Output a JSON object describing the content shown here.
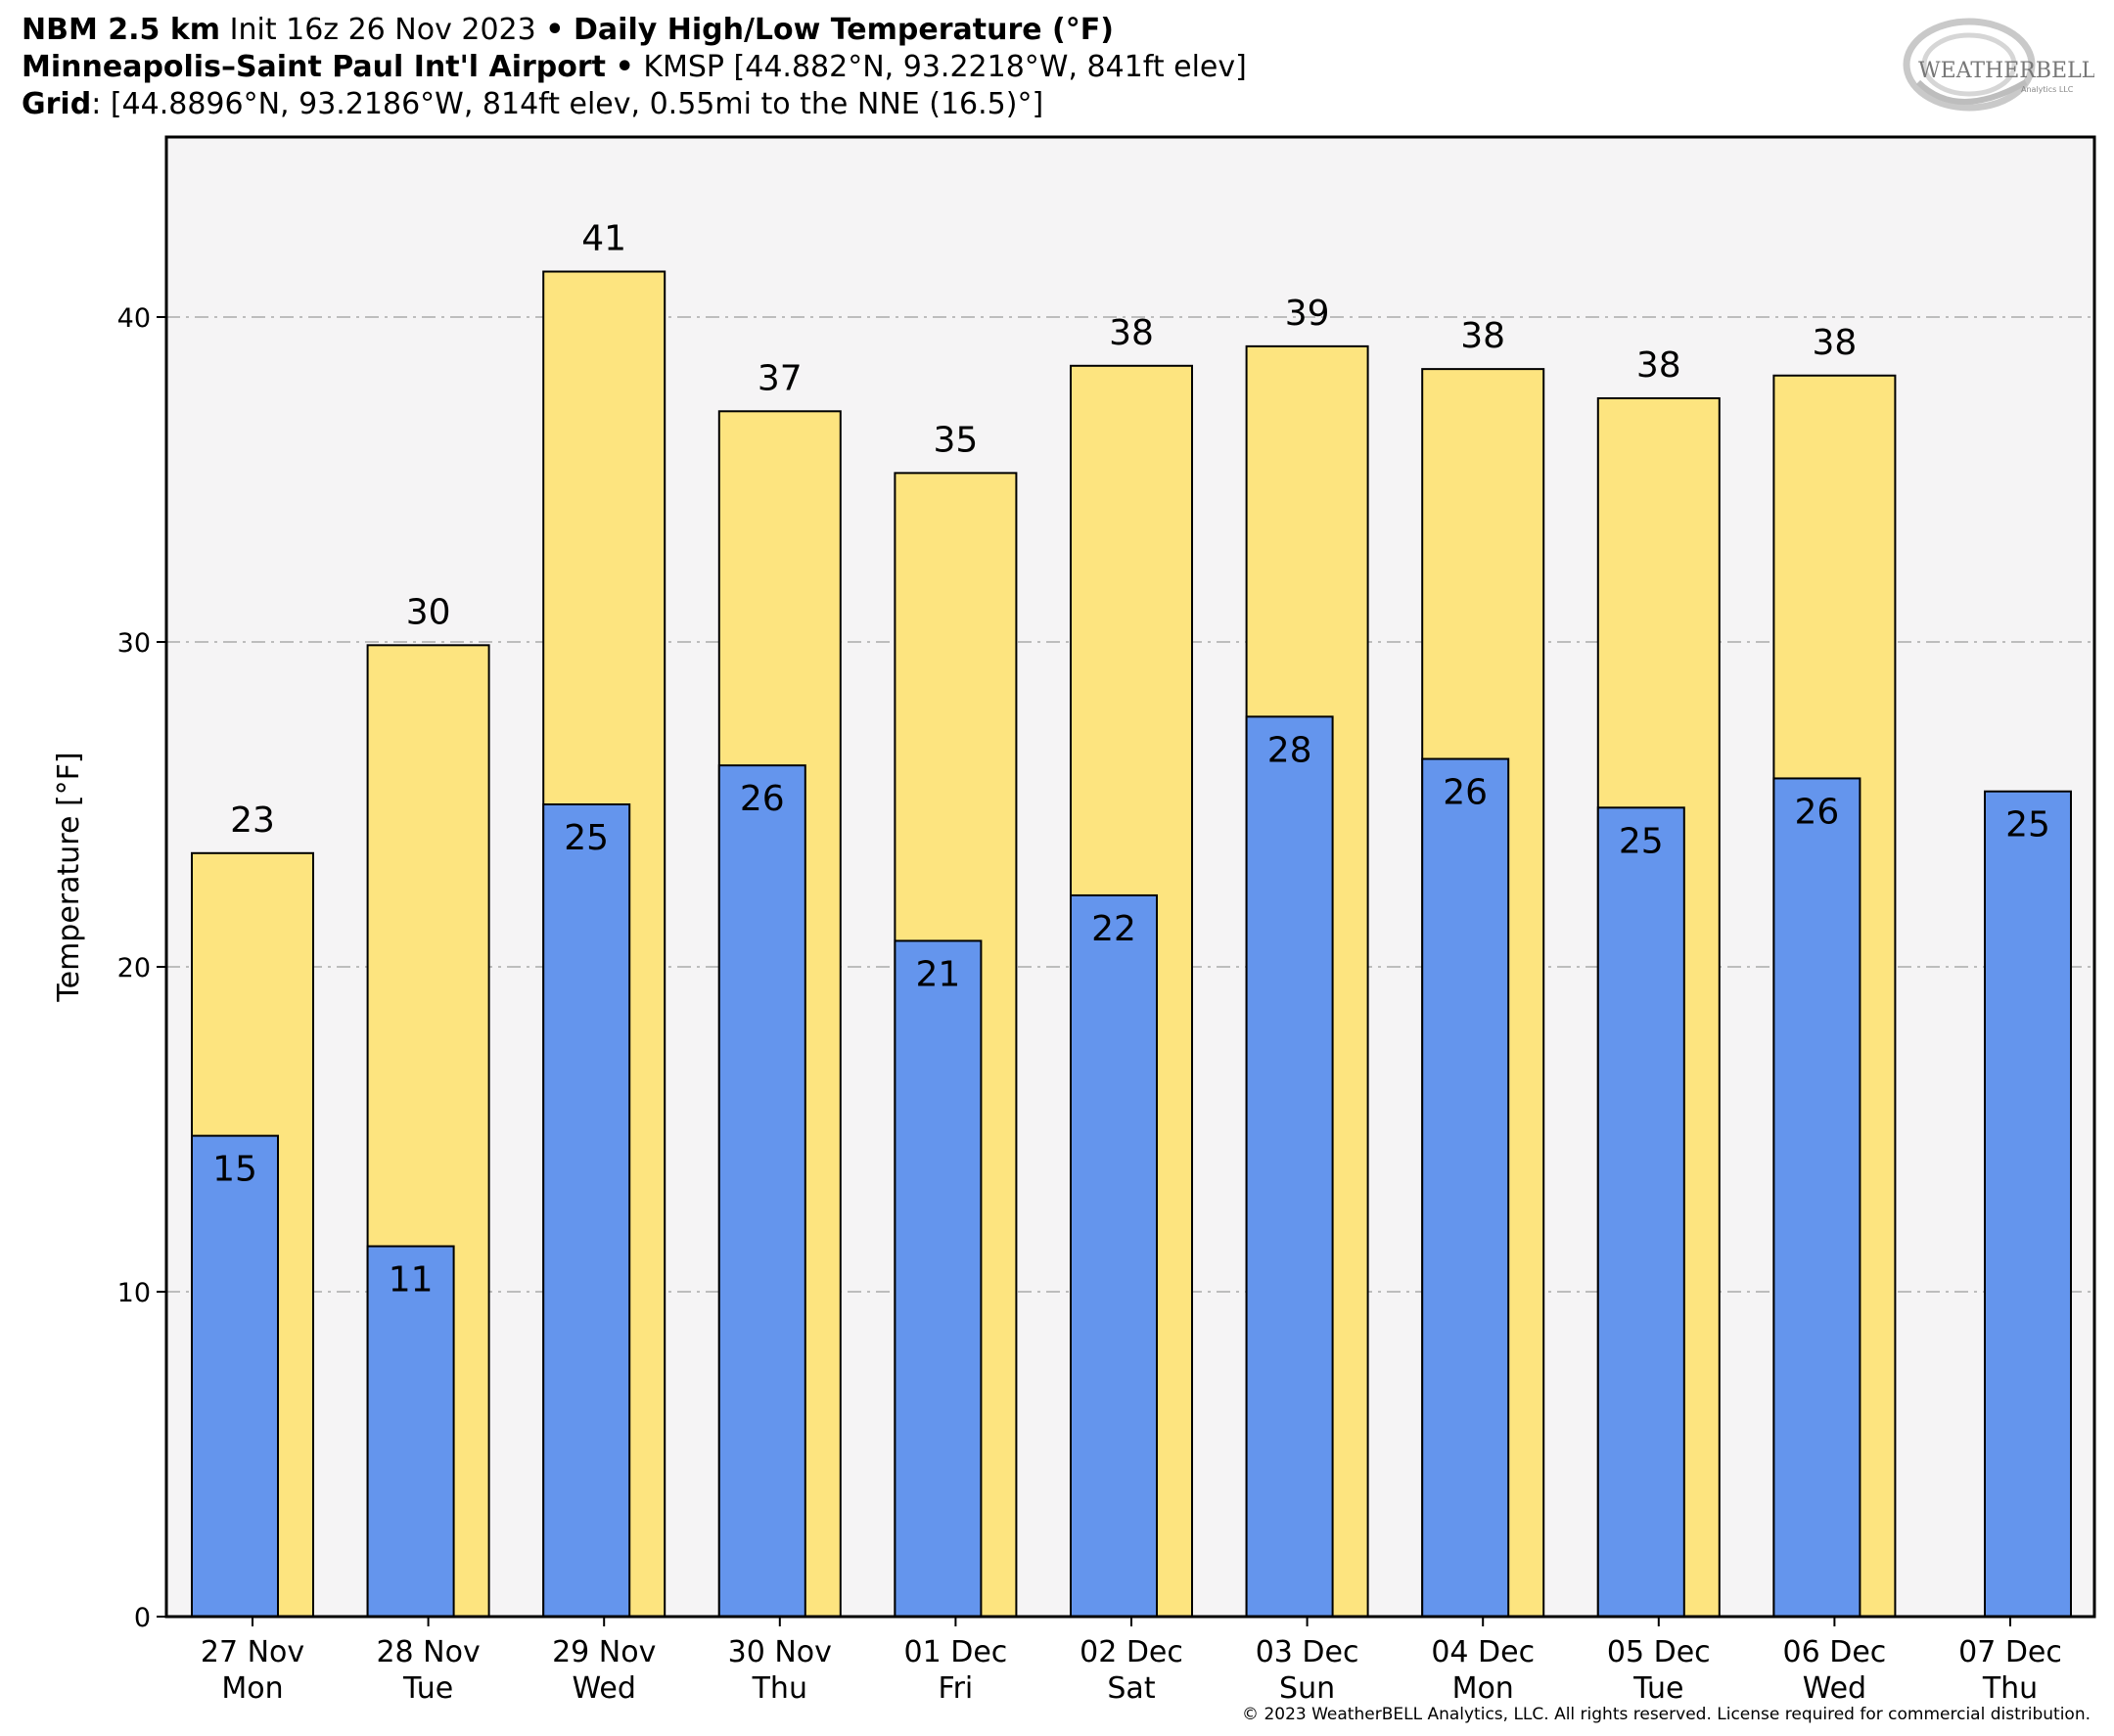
{
  "header": {
    "line1_bold": "NBM 2.5 km",
    "line1_init": "Init 16z 26 Nov 2023",
    "line1_sep": "•",
    "line1_title": "Daily High/Low Temperature (°F)",
    "line2_bold": "Minneapolis–Saint Paul Int'l Airport",
    "line2_sep": "•",
    "line2_rest": "KMSP [44.882°N, 93.2218°W, 841ft elev]",
    "line3_bold": "Grid",
    "line3_rest": ": [44.8896°N, 93.2186°W, 814ft elev, 0.55mi to the NNE (16.5)°]"
  },
  "logo": {
    "text": "WEATHERBELL",
    "subtext": "Analytics LLC"
  },
  "footer": {
    "copyright": "© 2023 WeatherBELL Analytics, LLC. All rights reserved. License required for commercial distribution."
  },
  "colors": {
    "high": "#fde47f",
    "low": "#6495ed",
    "plot_bg": "#f5f4f5",
    "grid": "#bdbdbd"
  },
  "chart_data": {
    "type": "bar",
    "title": "Daily High/Low Temperature (°F)",
    "ylabel": "Temperature [°F]",
    "xlabel": "",
    "ylim": [
      0,
      45.5
    ],
    "yticks": [
      0,
      10,
      20,
      30,
      40
    ],
    "grid": true,
    "categories": [
      {
        "date": "27 Nov",
        "day": "Mon"
      },
      {
        "date": "28 Nov",
        "day": "Tue"
      },
      {
        "date": "29 Nov",
        "day": "Wed"
      },
      {
        "date": "30 Nov",
        "day": "Thu"
      },
      {
        "date": "01 Dec",
        "day": "Fri"
      },
      {
        "date": "02 Dec",
        "day": "Sat"
      },
      {
        "date": "03 Dec",
        "day": "Sun"
      },
      {
        "date": "04 Dec",
        "day": "Mon"
      },
      {
        "date": "05 Dec",
        "day": "Tue"
      },
      {
        "date": "06 Dec",
        "day": "Wed"
      },
      {
        "date": "07 Dec",
        "day": "Thu"
      }
    ],
    "high": {
      "values": [
        23.5,
        29.9,
        41.4,
        37.1,
        35.2,
        38.5,
        39.1,
        38.4,
        37.5,
        38.2,
        null
      ],
      "labels": [
        "23",
        "30",
        "41",
        "37",
        "35",
        "38",
        "39",
        "38",
        "38",
        "38",
        ""
      ]
    },
    "low": {
      "values": [
        14.8,
        11.4,
        25.0,
        26.2,
        20.8,
        22.2,
        27.7,
        26.4,
        24.9,
        25.8,
        25.4
      ],
      "labels": [
        "15",
        "11",
        "25",
        "26",
        "21",
        "22",
        "28",
        "26",
        "25",
        "26",
        "25"
      ]
    }
  }
}
